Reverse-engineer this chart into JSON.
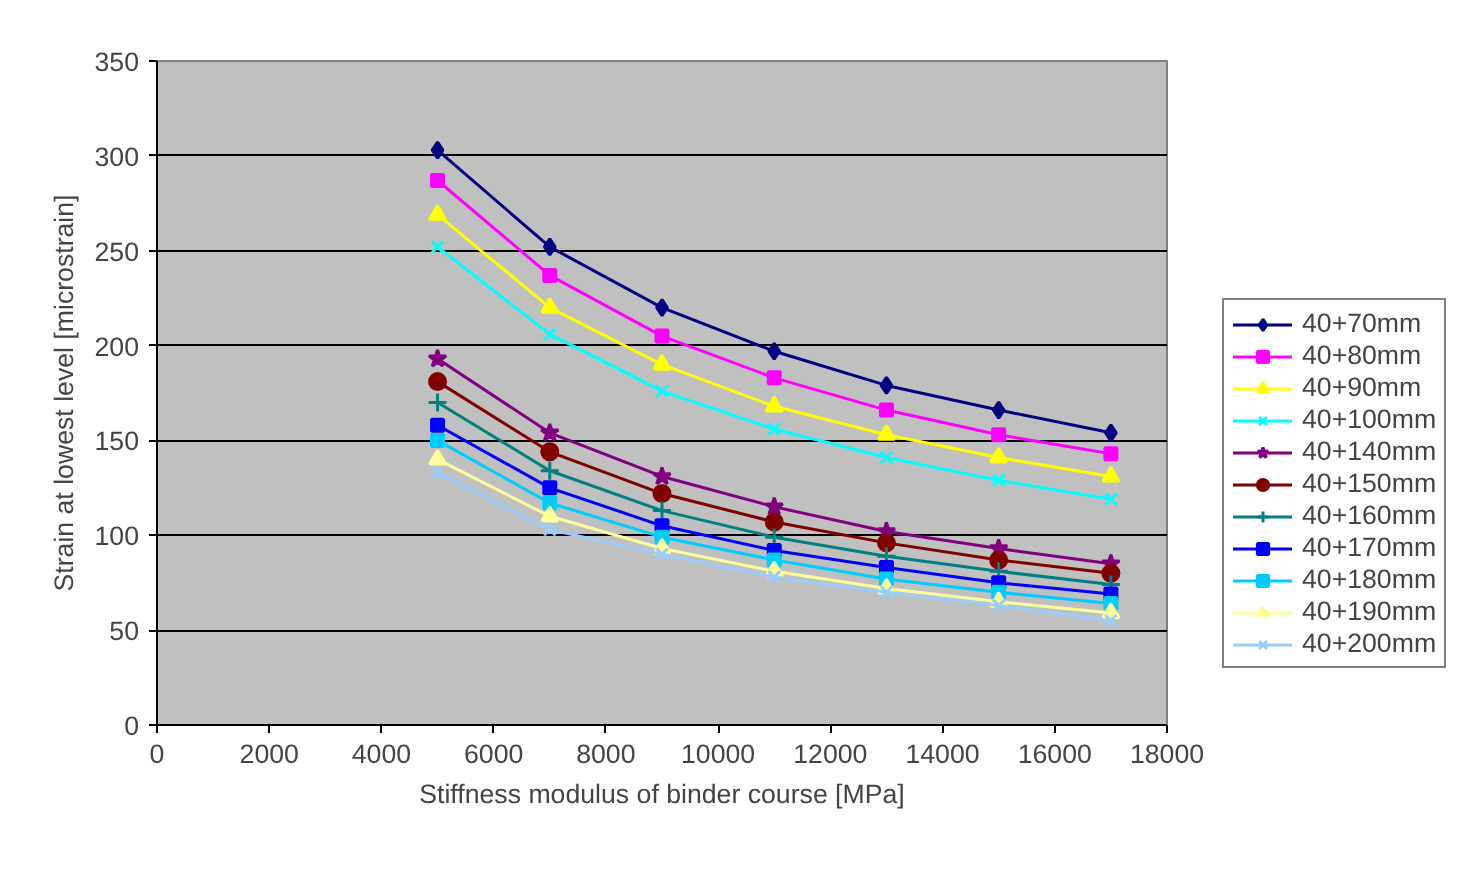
{
  "chart_data": {
    "type": "line",
    "xlabel": "Stiffness modulus of binder course [MPa]",
    "ylabel": "Strain at lowest level [microstrain]",
    "x": [
      5000,
      7000,
      9000,
      11000,
      13000,
      15000,
      17000
    ],
    "xlim": [
      0,
      18000
    ],
    "xticks": [
      0,
      2000,
      4000,
      6000,
      8000,
      10000,
      12000,
      14000,
      16000,
      18000
    ],
    "ylim": [
      0,
      350
    ],
    "yticks": [
      0,
      50,
      100,
      150,
      200,
      250,
      300,
      350
    ],
    "grid": "y",
    "legend": "right",
    "series": [
      {
        "name": "40+70mm",
        "color": "#000080",
        "marker": "diamond",
        "values": [
          303,
          252,
          220,
          197,
          179,
          166,
          154
        ]
      },
      {
        "name": "40+80mm",
        "color": "#ff00ff",
        "marker": "square",
        "values": [
          287,
          237,
          205,
          183,
          166,
          153,
          143
        ]
      },
      {
        "name": "40+90mm",
        "color": "#ffff00",
        "marker": "triangle",
        "values": [
          269,
          220,
          190,
          168,
          153,
          141,
          131
        ]
      },
      {
        "name": "40+100mm",
        "color": "#00ffff",
        "marker": "x",
        "values": [
          252,
          206,
          176,
          156,
          141,
          129,
          119
        ]
      },
      {
        "name": "40+140mm",
        "color": "#800080",
        "marker": "star",
        "values": [
          193,
          154,
          131,
          115,
          102,
          93,
          85
        ]
      },
      {
        "name": "40+150mm",
        "color": "#800000",
        "marker": "circle",
        "values": [
          181,
          144,
          122,
          107,
          96,
          87,
          80
        ]
      },
      {
        "name": "40+160mm",
        "color": "#008080",
        "marker": "cross",
        "values": [
          170,
          134,
          113,
          99,
          89,
          81,
          74
        ]
      },
      {
        "name": "40+170mm",
        "color": "#0000ff",
        "marker": "square",
        "values": [
          158,
          125,
          105,
          92,
          83,
          75,
          69
        ]
      },
      {
        "name": "40+180mm",
        "color": "#00ccff",
        "marker": "square",
        "values": [
          150,
          117,
          99,
          87,
          77,
          70,
          64
        ]
      },
      {
        "name": "40+190mm",
        "color": "#ffff99",
        "marker": "triangle",
        "values": [
          140,
          110,
          93,
          81,
          72,
          65,
          59
        ]
      },
      {
        "name": "40+200mm",
        "color": "#99ccff",
        "marker": "x",
        "values": [
          133,
          103,
          90,
          78,
          70,
          63,
          55
        ]
      }
    ]
  }
}
